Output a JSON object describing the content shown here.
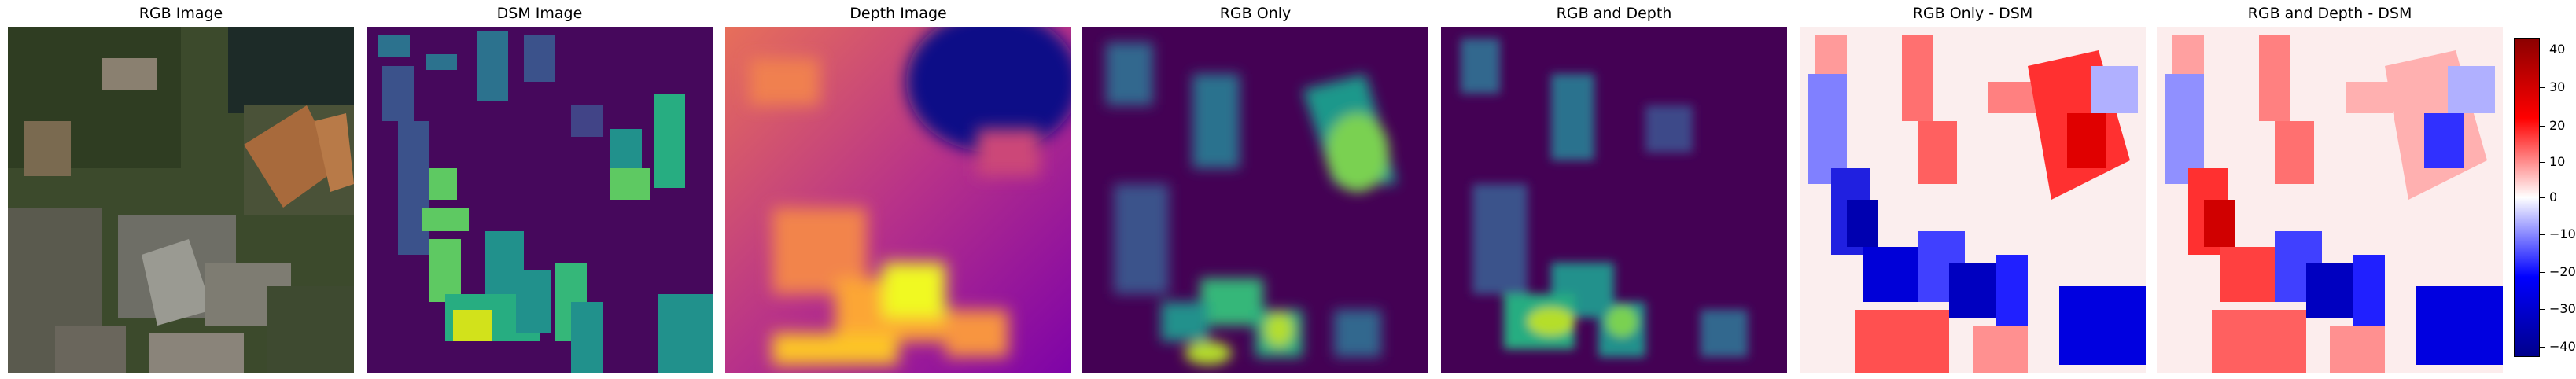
{
  "panels": [
    {
      "title": "RGB Image"
    },
    {
      "title": "DSM Image"
    },
    {
      "title": "Depth Image"
    },
    {
      "title": "RGB Only"
    },
    {
      "title": "RGB and Depth"
    },
    {
      "title": "RGB Only - DSM"
    },
    {
      "title": "RGB and Depth - DSM"
    }
  ],
  "colorbar": {
    "colormap": "seismic",
    "range": [
      -42,
      42
    ],
    "ticks": [
      "40",
      "30",
      "20",
      "10",
      "0",
      "−10",
      "−20",
      "−30",
      "−40"
    ],
    "colors": {
      "max": "#8b0000",
      "mid": "#ffffff",
      "min": "#00008b"
    }
  }
}
